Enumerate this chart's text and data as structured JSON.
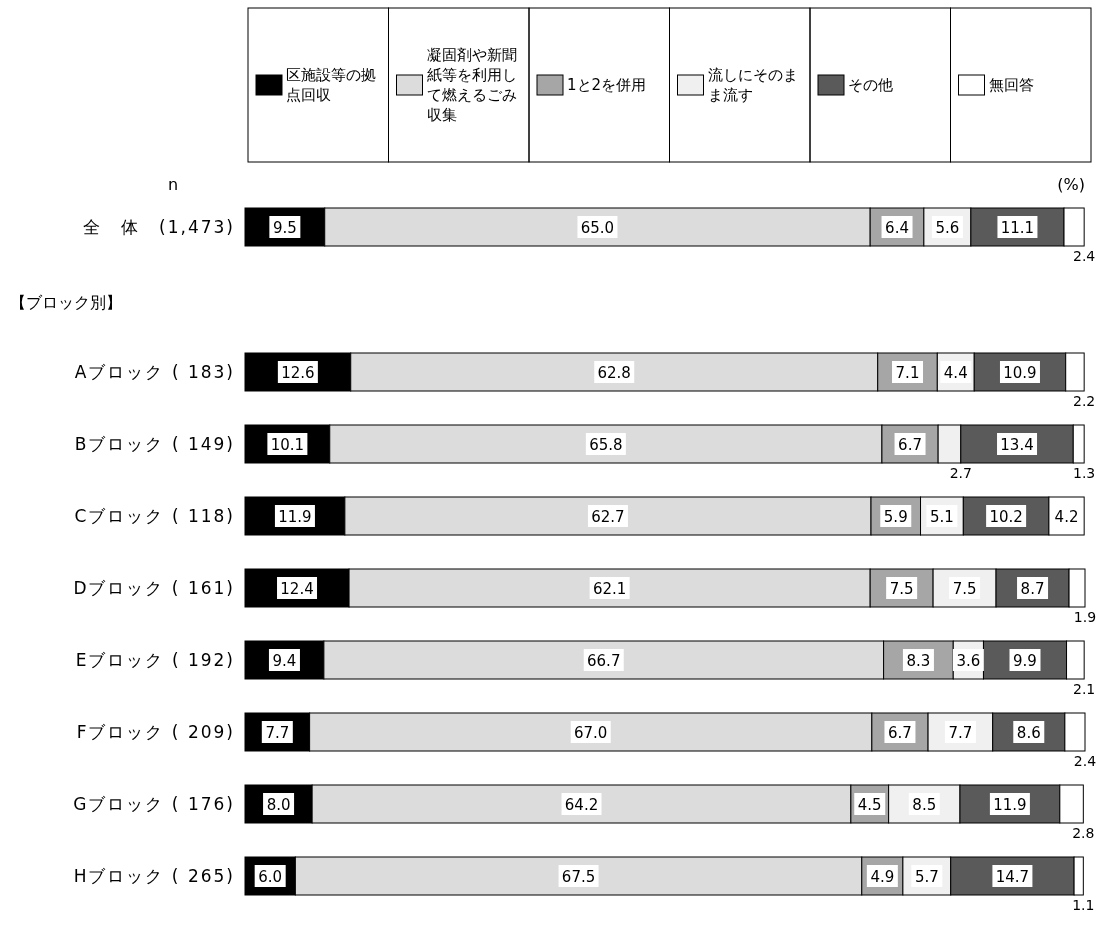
{
  "chart_data": {
    "type": "bar",
    "orientation": "horizontal",
    "stacked": true,
    "legend": "top",
    "categories": [
      "全　体　(1,473)",
      "Aブロック ( 183)",
      "Bブロック ( 149)",
      "Cブロック ( 118)",
      "Dブロック ( 161)",
      "Eブロック ( 192)",
      "Fブロック ( 209)",
      "Gブロック ( 176)",
      "Hブロック ( 265)"
    ],
    "series": [
      {
        "name": "区施設等の拠点回収",
        "color": "#000000",
        "values": [
          9.5,
          12.6,
          10.1,
          11.9,
          12.4,
          9.4,
          7.7,
          8.0,
          6.0
        ],
        "value_labels": [
          "9.5",
          "12.6",
          "10.1",
          "11.9",
          "12.4",
          "9.4",
          "7.7",
          "8.0",
          "6.0"
        ]
      },
      {
        "name": "凝固剤や新聞紙等を利用して燃えるごみ収集",
        "color": "#dcdcdc",
        "values": [
          65.0,
          62.8,
          65.8,
          62.7,
          62.1,
          66.7,
          67.0,
          64.2,
          67.5
        ],
        "value_labels": [
          "65.0",
          "62.8",
          "65.8",
          "62.7",
          "62.1",
          "66.7",
          "67.0",
          "64.2",
          "67.5"
        ]
      },
      {
        "name": "1と2を併用",
        "color": "#a6a6a6",
        "values": [
          6.4,
          7.1,
          6.7,
          5.9,
          7.5,
          8.3,
          6.7,
          4.5,
          4.9
        ],
        "value_labels": [
          "6.4",
          "7.1",
          "6.7",
          "5.9",
          "7.5",
          "8.3",
          "6.7",
          "4.5",
          "4.9"
        ]
      },
      {
        "name": "流しにそのまま流す",
        "color": "#f0f0f0",
        "values": [
          5.6,
          4.4,
          2.7,
          5.1,
          7.5,
          3.6,
          7.7,
          8.5,
          5.7
        ],
        "value_labels": [
          "5.6",
          "4.4",
          "2.7",
          "5.1",
          "7.5",
          "3.6",
          "7.7",
          "8.5",
          "5.7"
        ]
      },
      {
        "name": "その他",
        "color": "#5a5a5a",
        "values": [
          11.1,
          10.9,
          13.4,
          10.2,
          8.7,
          9.9,
          8.6,
          11.9,
          14.7
        ],
        "value_labels": [
          "11.1",
          "10.9",
          "13.4",
          "10.2",
          "8.7",
          "9.9",
          "8.6",
          "11.9",
          "14.7"
        ]
      },
      {
        "name": "無回答",
        "color": "#ffffff",
        "values": [
          2.4,
          2.2,
          1.3,
          4.2,
          1.9,
          2.1,
          2.4,
          2.8,
          1.1
        ],
        "value_labels": [
          "2.4",
          "2.2",
          "1.3",
          "4.2",
          "1.9",
          "2.1",
          "2.4",
          "2.8",
          "1.1"
        ]
      }
    ],
    "annotations": [
      "n",
      "(%)",
      "【ブロック別】"
    ]
  }
}
